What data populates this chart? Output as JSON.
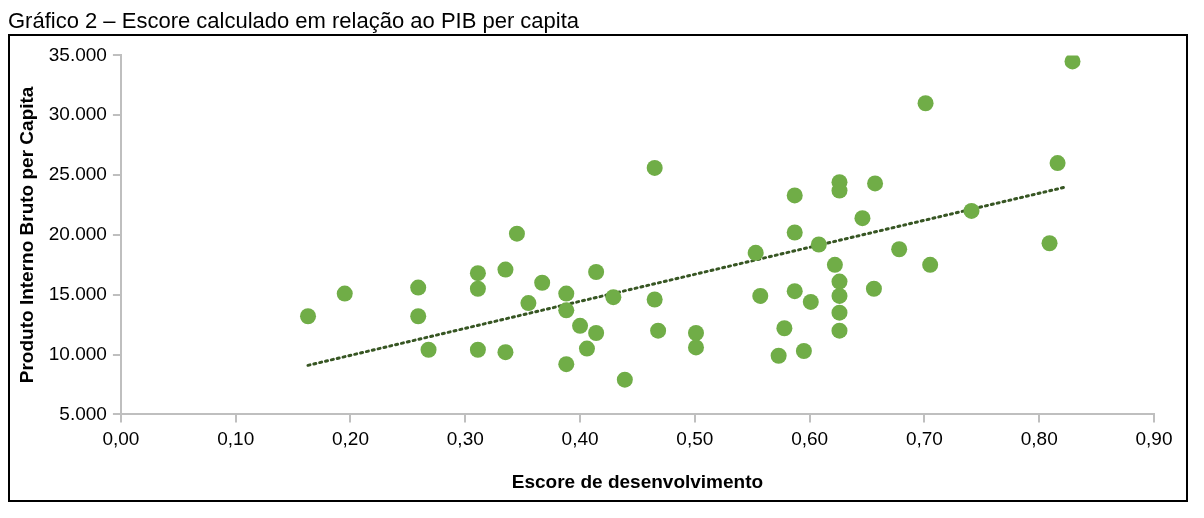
{
  "chart_data": {
    "type": "scatter",
    "title": "Gráfico 2 – Escore calculado em relação ao PIB per capita",
    "xlabel": "Escore de desenvolvimento",
    "ylabel": "Produto Interno Bruto per Capita",
    "xlim": [
      0,
      0.9
    ],
    "ylim": [
      5000,
      35000
    ],
    "xticks": [
      {
        "value": 0,
        "label": "0,00"
      },
      {
        "value": 0.1,
        "label": "0,10"
      },
      {
        "value": 0.2,
        "label": "0,20"
      },
      {
        "value": 0.3,
        "label": "0,30"
      },
      {
        "value": 0.4,
        "label": "0,40"
      },
      {
        "value": 0.5,
        "label": "0,50"
      },
      {
        "value": 0.6,
        "label": "0,60"
      },
      {
        "value": 0.7,
        "label": "0,70"
      },
      {
        "value": 0.8,
        "label": "0,80"
      },
      {
        "value": 0.9,
        "label": "0,90"
      }
    ],
    "yticks": [
      {
        "value": 5000,
        "label": "5.000"
      },
      {
        "value": 10000,
        "label": "10.000"
      },
      {
        "value": 15000,
        "label": "15.000"
      },
      {
        "value": 20000,
        "label": "20.000"
      },
      {
        "value": 25000,
        "label": "25.000"
      },
      {
        "value": 30000,
        "label": "30.000"
      },
      {
        "value": 35000,
        "label": "35.000"
      }
    ],
    "grid": false,
    "legend": false,
    "series": [
      {
        "type": "scatter",
        "color": "#70ad47",
        "marker": "circle",
        "x": [
          0.163,
          0.195,
          0.259,
          0.259,
          0.268,
          0.311,
          0.311,
          0.311,
          0.335,
          0.335,
          0.345,
          0.355,
          0.367,
          0.388,
          0.388,
          0.388,
          0.4,
          0.406,
          0.414,
          0.414,
          0.429,
          0.439,
          0.465,
          0.465,
          0.468,
          0.501,
          0.501,
          0.553,
          0.557,
          0.578,
          0.573,
          0.587,
          0.587,
          0.587,
          0.595,
          0.601,
          0.608,
          0.622,
          0.626,
          0.626,
          0.626,
          0.626,
          0.626,
          0.626,
          0.646,
          0.657,
          0.656,
          0.678,
          0.701,
          0.705,
          0.741,
          0.809,
          0.816,
          0.829
        ],
        "values": [
          13200,
          15100,
          15600,
          13200,
          10400,
          16800,
          15500,
          10400,
          17100,
          10200,
          20100,
          14300,
          16000,
          15100,
          13700,
          9200,
          12400,
          10500,
          11800,
          16900,
          14800,
          7900,
          25600,
          14600,
          12000,
          11800,
          10600,
          18500,
          14900,
          12200,
          9900,
          23300,
          20200,
          15300,
          10300,
          14400,
          19200,
          17500,
          24400,
          23700,
          16100,
          14900,
          13500,
          12000,
          21400,
          24300,
          15500,
          18800,
          31000,
          17500,
          22000,
          19300,
          26000,
          34500
        ]
      },
      {
        "type": "line",
        "color": "#375623",
        "marker": "none",
        "line_style": "dotted",
        "x": [
          0.163,
          0.823
        ],
        "values": [
          9100,
          24000
        ]
      }
    ]
  }
}
